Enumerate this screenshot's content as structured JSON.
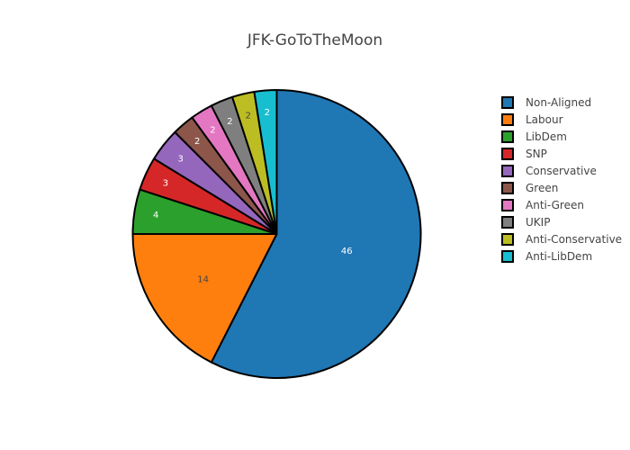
{
  "chart_data": {
    "type": "pie",
    "title": "JFK-GoToTheMoon",
    "legend_position": "right",
    "slices": [
      {
        "label": "Non-Aligned",
        "value": 46,
        "color": "#1f77b4"
      },
      {
        "label": "Labour",
        "value": 14,
        "color": "#ff7f0e"
      },
      {
        "label": "LibDem",
        "value": 4,
        "color": "#2ca02c"
      },
      {
        "label": "SNP",
        "value": 3,
        "color": "#d62728"
      },
      {
        "label": "Conservative",
        "value": 3,
        "color": "#9467bd"
      },
      {
        "label": "Green",
        "value": 2,
        "color": "#8c564b"
      },
      {
        "label": "Anti-Green",
        "value": 2,
        "color": "#e377c2"
      },
      {
        "label": "UKIP",
        "value": 2,
        "color": "#7f7f7f"
      },
      {
        "label": "Anti-Conservative",
        "value": 2,
        "color": "#bcbd22"
      },
      {
        "label": "Anti-LibDem",
        "value": 2,
        "color": "#17becf"
      }
    ]
  }
}
